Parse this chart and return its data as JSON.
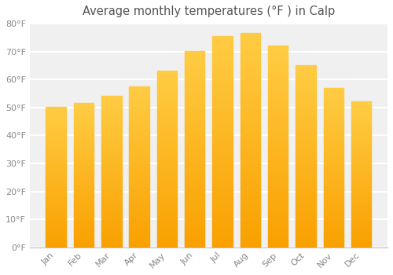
{
  "title": "Average monthly temperatures (°F ) in Calp",
  "months": [
    "Jan",
    "Feb",
    "Mar",
    "Apr",
    "May",
    "Jun",
    "Jul",
    "Aug",
    "Sep",
    "Oct",
    "Nov",
    "Dec"
  ],
  "values": [
    50,
    51.5,
    54,
    57.5,
    63,
    70,
    75.5,
    76.5,
    72,
    65,
    57,
    52
  ],
  "bar_color_top": "#FDB92E",
  "bar_color_bottom": "#F9A000",
  "bar_edge_color": "#CCCCCC",
  "background_color": "#FFFFFF",
  "plot_bg_color": "#F0F0F0",
  "grid_color": "#FFFFFF",
  "text_color": "#888888",
  "title_color": "#555555",
  "ylim": [
    0,
    80
  ],
  "ytick_step": 10,
  "title_fontsize": 10.5,
  "tick_fontsize": 8,
  "bar_width": 0.72
}
